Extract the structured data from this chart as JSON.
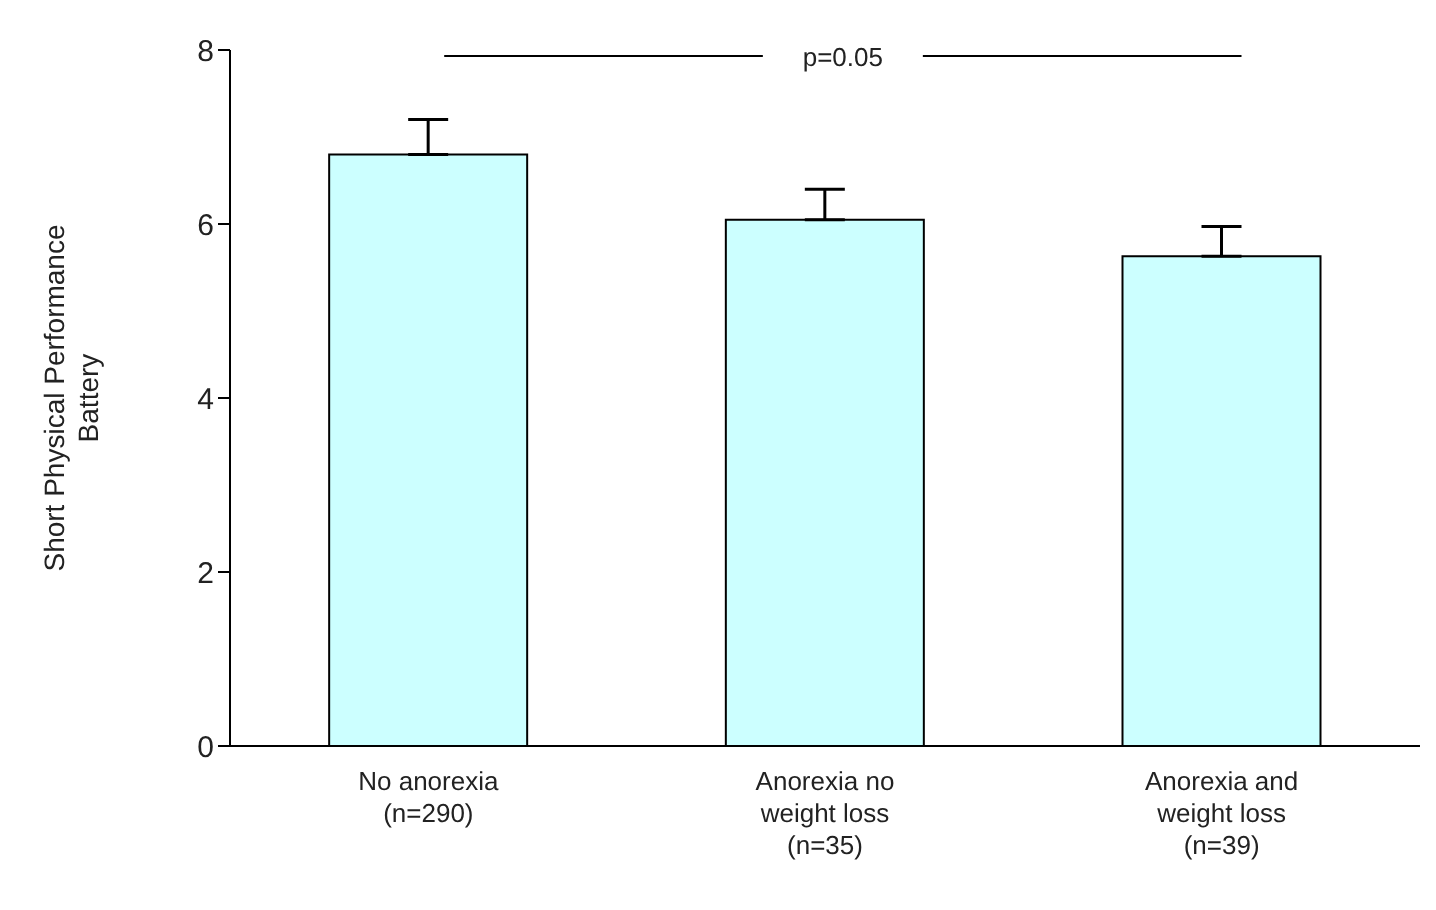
{
  "chart_data": {
    "type": "bar",
    "ylabel": "Short Physical Performance Battery",
    "categories": [
      "No anorexia (n=290)",
      "Anorexia no weight loss (n=35)",
      "Anorexia and weight loss (n=39)"
    ],
    "values": [
      6.8,
      6.05,
      5.63
    ],
    "errors": [
      [
        6.8,
        7.2
      ],
      [
        6.05,
        6.4
      ],
      [
        5.63,
        5.97
      ]
    ],
    "color": "#ccffff",
    "ylim": [
      0,
      8
    ],
    "yticks": [
      0,
      2,
      4,
      6,
      8
    ],
    "annotations": [
      "p=0.05"
    ]
  }
}
